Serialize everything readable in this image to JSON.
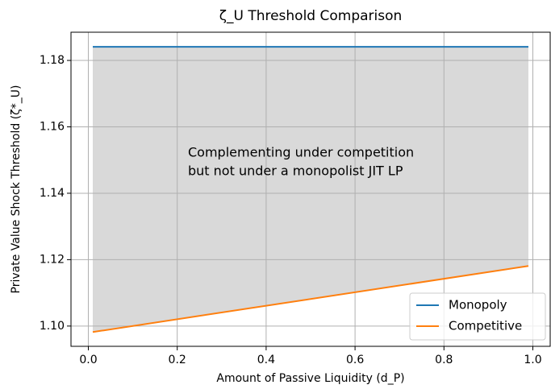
{
  "chart_data": {
    "type": "line",
    "title": "ζ_U Threshold Comparison",
    "x_label": "Amount of Passive Liquidity (d_P)",
    "y_label": "Private Value Shock Threshold (ζ*_U)",
    "annotation": [
      "Complementing under competition",
      "but not under a monopolist JIT LP"
    ],
    "x": [
      0.01,
      0.99
    ],
    "series": [
      {
        "name": "Monopoly",
        "color": "#1f77b4",
        "values": [
          1.1841,
          1.1841
        ]
      },
      {
        "name": "Competitive",
        "color": "#ff7f0e",
        "values": [
          1.0982,
          1.1181
        ]
      }
    ],
    "fill_color": "#d9d9d9",
    "xlim": [
      -0.039,
      1.039
    ],
    "ylim": [
      1.0939,
      1.1885
    ],
    "xticks": [
      {
        "value": 0,
        "label": "0.0"
      },
      0.2,
      0.4,
      0.6,
      0.8,
      {
        "value": 1,
        "label": "1.0"
      }
    ],
    "yticks": [
      {
        "value": 1.1,
        "label": "1.10"
      },
      1.12,
      1.14,
      1.16,
      1.18
    ],
    "grid": true,
    "legend": "lower right"
  }
}
